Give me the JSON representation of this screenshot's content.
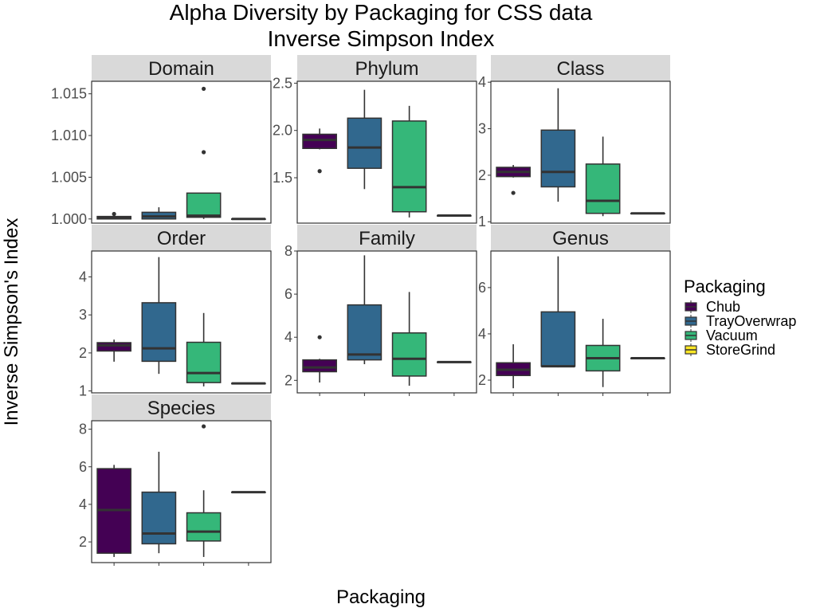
{
  "chart_data": {
    "type": "boxplot",
    "title": [
      "Alpha Diversity by Packaging for CSS data",
      "Inverse Simpson Index"
    ],
    "xlabel": "Packaging",
    "ylabel": "Inverse Simpson's Index",
    "grid": false,
    "legend_position": "right",
    "legend": {
      "title": "Packaging",
      "entries": [
        {
          "label": "Chub",
          "color": "#440154"
        },
        {
          "label": "TrayOverwrap",
          "color": "#31688E"
        },
        {
          "label": "Vacuum",
          "color": "#35B779"
        },
        {
          "label": "StoreGrind",
          "color": "#FDE725"
        }
      ]
    },
    "categories": [
      "Chub",
      "TrayOverwrap",
      "Vacuum",
      "StoreGrind"
    ],
    "panels": [
      {
        "name": "Domain",
        "ylim": [
          0.9995,
          1.0165
        ],
        "yticks": [
          1.0,
          1.005,
          1.01,
          1.015
        ],
        "ytick_labels": [
          "1.000",
          "1.005",
          "1.010",
          "1.015"
        ],
        "boxes": [
          {
            "category": "Chub",
            "min": 1.0,
            "q1": 1.0,
            "median": 1.0001,
            "q3": 1.0003,
            "max": 1.0004,
            "outliers": [
              1.0006
            ]
          },
          {
            "category": "TrayOverwrap",
            "min": 1.0,
            "q1": 1.0,
            "median": 1.0003,
            "q3": 1.0008,
            "max": 1.0014,
            "outliers": []
          },
          {
            "category": "Vacuum",
            "min": 1.0,
            "q1": 1.0002,
            "median": 1.0004,
            "q3": 1.0031,
            "max": 1.0031,
            "outliers": [
              1.008,
              1.0156
            ]
          },
          {
            "category": "StoreGrind",
            "min": 1.0,
            "q1": 1.0,
            "median": 1.0,
            "q3": 1.0,
            "max": 1.0,
            "outliers": []
          }
        ]
      },
      {
        "name": "Phylum",
        "ylim": [
          1.02,
          2.52
        ],
        "yticks": [
          1.5,
          2.0,
          2.5
        ],
        "ytick_labels": [
          "1.5",
          "2.0",
          "2.5"
        ],
        "boxes": [
          {
            "category": "Chub",
            "min": 1.8,
            "q1": 1.81,
            "median": 1.9,
            "q3": 1.96,
            "max": 2.02,
            "outliers": [
              1.57
            ]
          },
          {
            "category": "TrayOverwrap",
            "min": 1.38,
            "q1": 1.6,
            "median": 1.82,
            "q3": 2.13,
            "max": 2.43,
            "outliers": []
          },
          {
            "category": "Vacuum",
            "min": 1.08,
            "q1": 1.14,
            "median": 1.4,
            "q3": 2.1,
            "max": 2.26,
            "outliers": []
          },
          {
            "category": "StoreGrind",
            "min": 1.1,
            "q1": 1.1,
            "median": 1.1,
            "q3": 1.1,
            "max": 1.1,
            "outliers": []
          }
        ]
      },
      {
        "name": "Class",
        "ylim": [
          0.97,
          4.02
        ],
        "yticks": [
          1,
          2,
          3,
          4
        ],
        "ytick_labels": [
          "1",
          "2",
          "3",
          "4"
        ],
        "boxes": [
          {
            "category": "Chub",
            "min": 1.95,
            "q1": 1.97,
            "median": 2.07,
            "q3": 2.17,
            "max": 2.22,
            "outliers": [
              1.62
            ]
          },
          {
            "category": "TrayOverwrap",
            "min": 1.43,
            "q1": 1.75,
            "median": 2.07,
            "q3": 2.97,
            "max": 3.87,
            "outliers": []
          },
          {
            "category": "Vacuum",
            "min": 1.12,
            "q1": 1.18,
            "median": 1.45,
            "q3": 2.24,
            "max": 2.83,
            "outliers": []
          },
          {
            "category": "StoreGrind",
            "min": 1.18,
            "q1": 1.18,
            "median": 1.18,
            "q3": 1.18,
            "max": 1.18,
            "outliers": []
          }
        ]
      },
      {
        "name": "Order",
        "ylim": [
          0.95,
          4.68
        ],
        "yticks": [
          1,
          2,
          3,
          4
        ],
        "ytick_labels": [
          "1",
          "2",
          "3",
          "4"
        ],
        "boxes": [
          {
            "category": "Chub",
            "min": 1.77,
            "q1": 2.05,
            "median": 2.2,
            "q3": 2.27,
            "max": 2.35,
            "outliers": []
          },
          {
            "category": "TrayOverwrap",
            "min": 1.45,
            "q1": 1.78,
            "median": 2.12,
            "q3": 3.32,
            "max": 4.52,
            "outliers": []
          },
          {
            "category": "Vacuum",
            "min": 1.12,
            "q1": 1.22,
            "median": 1.47,
            "q3": 2.28,
            "max": 3.05,
            "outliers": []
          },
          {
            "category": "StoreGrind",
            "min": 1.2,
            "q1": 1.2,
            "median": 1.2,
            "q3": 1.2,
            "max": 1.2,
            "outliers": []
          }
        ]
      },
      {
        "name": "Family",
        "ylim": [
          1.42,
          8.0
        ],
        "yticks": [
          2,
          4,
          6,
          8
        ],
        "ytick_labels": [
          "2",
          "4",
          "6",
          "8"
        ],
        "boxes": [
          {
            "category": "Chub",
            "min": 1.9,
            "q1": 2.4,
            "median": 2.6,
            "q3": 2.95,
            "max": 3.0,
            "outliers": [
              4.0
            ]
          },
          {
            "category": "TrayOverwrap",
            "min": 2.75,
            "q1": 2.95,
            "median": 3.2,
            "q3": 5.5,
            "max": 7.8,
            "outliers": []
          },
          {
            "category": "Vacuum",
            "min": 1.75,
            "q1": 2.2,
            "median": 3.0,
            "q3": 4.2,
            "max": 6.1,
            "outliers": []
          },
          {
            "category": "StoreGrind",
            "min": 2.85,
            "q1": 2.85,
            "median": 2.85,
            "q3": 2.85,
            "max": 2.85,
            "outliers": []
          }
        ]
      },
      {
        "name": "Genus",
        "ylim": [
          1.45,
          7.58
        ],
        "yticks": [
          2,
          4,
          6
        ],
        "ytick_labels": [
          "2",
          "4",
          "6"
        ],
        "boxes": [
          {
            "category": "Chub",
            "min": 1.65,
            "q1": 2.2,
            "median": 2.45,
            "q3": 2.75,
            "max": 3.55,
            "outliers": []
          },
          {
            "category": "TrayOverwrap",
            "min": 2.55,
            "q1": 2.6,
            "median": 2.6,
            "q3": 4.95,
            "max": 7.35,
            "outliers": []
          },
          {
            "category": "Vacuum",
            "min": 1.7,
            "q1": 2.4,
            "median": 2.95,
            "q3": 3.5,
            "max": 4.65,
            "outliers": []
          },
          {
            "category": "StoreGrind",
            "min": 2.95,
            "q1": 2.95,
            "median": 2.95,
            "q3": 2.95,
            "max": 2.95,
            "outliers": []
          }
        ]
      },
      {
        "name": "Species",
        "ylim": [
          0.9,
          8.45
        ],
        "yticks": [
          2,
          4,
          6,
          8
        ],
        "ytick_labels": [
          "2",
          "4",
          "6",
          "8"
        ],
        "boxes": [
          {
            "category": "Chub",
            "min": 1.2,
            "q1": 1.4,
            "median": 3.7,
            "q3": 5.9,
            "max": 6.1,
            "outliers": []
          },
          {
            "category": "TrayOverwrap",
            "min": 1.4,
            "q1": 1.9,
            "median": 2.45,
            "q3": 4.65,
            "max": 6.8,
            "outliers": []
          },
          {
            "category": "Vacuum",
            "min": 1.2,
            "q1": 2.05,
            "median": 2.55,
            "q3": 3.55,
            "max": 4.75,
            "outliers": [
              8.15
            ]
          },
          {
            "category": "StoreGrind",
            "min": 4.65,
            "q1": 4.65,
            "median": 4.65,
            "q3": 4.65,
            "max": 4.65,
            "outliers": []
          }
        ]
      }
    ]
  }
}
